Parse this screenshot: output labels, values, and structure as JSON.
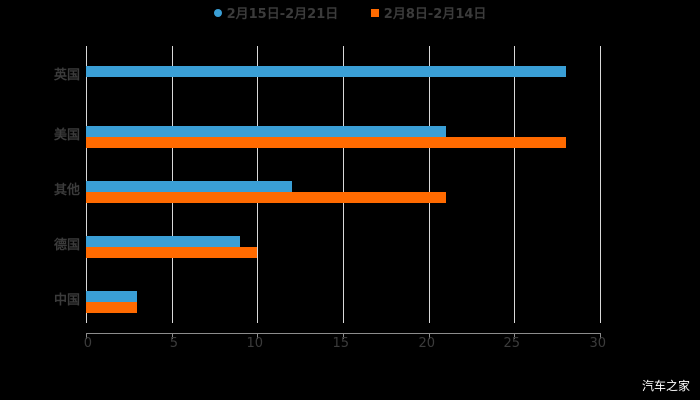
{
  "chart_data": {
    "type": "bar",
    "orientation": "horizontal",
    "title": "",
    "categories": [
      "英国",
      "美国",
      "其他",
      "德国",
      "中国"
    ],
    "series": [
      {
        "name": "2月15日-2月21日",
        "color": "#3a9fd6",
        "values": [
          28,
          21,
          12,
          9,
          3
        ]
      },
      {
        "name": "2月8日-2月14日",
        "color": "#ff6a00",
        "values": [
          0,
          28,
          21,
          10,
          3
        ]
      }
    ],
    "xlabel": "",
    "ylabel": "",
    "xlim": [
      0,
      30
    ],
    "xticks": [
      "0",
      "5",
      "10",
      "15",
      "20",
      "25",
      "30"
    ],
    "grid": true,
    "legend_position": "top"
  },
  "legend": [
    {
      "label": "2月15日-2月21日",
      "color": "#3a9fd6",
      "shape": "circle"
    },
    {
      "label": "2月8日-2月14日",
      "color": "#ff6a00",
      "shape": "square"
    }
  ],
  "watermark": "汽车之家"
}
